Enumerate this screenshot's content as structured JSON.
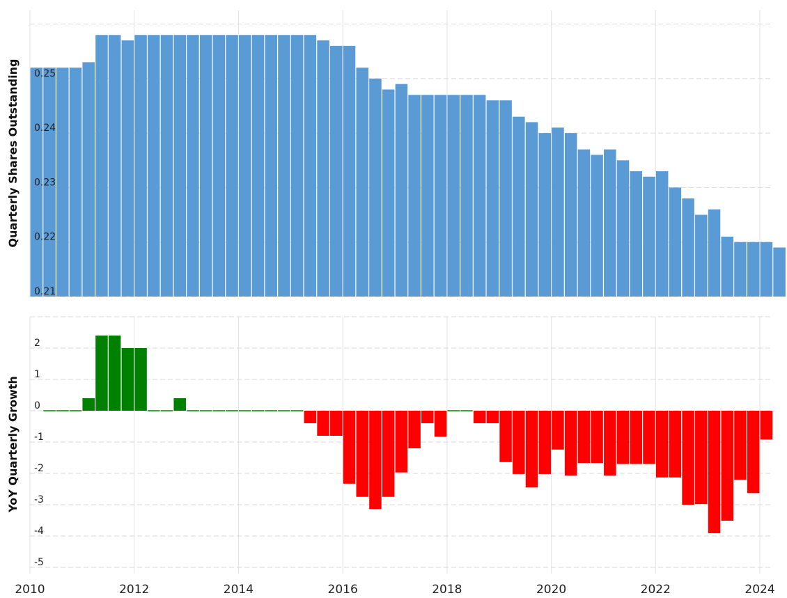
{
  "chart_data": [
    {
      "type": "bar",
      "ylabel": "Quarterly Shares Outstanding",
      "ylim": [
        0.21,
        0.2625
      ],
      "y_ticks": [
        "0.21",
        "0.22",
        "0.23",
        "0.24",
        "0.25"
      ],
      "x_ticks": [
        "2010",
        "2012",
        "2014",
        "2016",
        "2018",
        "2020",
        "2022",
        "2024"
      ],
      "grid": true,
      "color": "#5b9bd5",
      "quarters": [
        "2010-Q1",
        "2010-Q2",
        "2010-Q3",
        "2010-Q4",
        "2011-Q1",
        "2011-Q2",
        "2011-Q3",
        "2011-Q4",
        "2012-Q1",
        "2012-Q2",
        "2012-Q3",
        "2012-Q4",
        "2013-Q1",
        "2013-Q2",
        "2013-Q3",
        "2013-Q4",
        "2014-Q1",
        "2014-Q2",
        "2014-Q3",
        "2014-Q4",
        "2015-Q1",
        "2015-Q2",
        "2015-Q3",
        "2015-Q4",
        "2016-Q1",
        "2016-Q2",
        "2016-Q3",
        "2016-Q4",
        "2017-Q1",
        "2017-Q2",
        "2017-Q3",
        "2017-Q4",
        "2018-Q1",
        "2018-Q2",
        "2018-Q3",
        "2018-Q4",
        "2019-Q1",
        "2019-Q2",
        "2019-Q3",
        "2019-Q4",
        "2020-Q1",
        "2020-Q2",
        "2020-Q3",
        "2020-Q4",
        "2021-Q1",
        "2021-Q2",
        "2021-Q3",
        "2021-Q4",
        "2022-Q1",
        "2022-Q2",
        "2022-Q3",
        "2022-Q4",
        "2023-Q1",
        "2023-Q2",
        "2023-Q3",
        "2023-Q4",
        "2024-Q1",
        "2024-Q2"
      ],
      "values": [
        0.252,
        0.252,
        0.252,
        0.252,
        0.253,
        0.258,
        0.258,
        0.257,
        0.258,
        0.258,
        0.258,
        0.258,
        0.258,
        0.258,
        0.258,
        0.258,
        0.258,
        0.258,
        0.258,
        0.258,
        0.258,
        0.258,
        0.257,
        0.256,
        0.256,
        0.252,
        0.25,
        0.248,
        0.249,
        0.247,
        0.247,
        0.247,
        0.247,
        0.247,
        0.247,
        0.246,
        0.246,
        0.243,
        0.242,
        0.24,
        0.241,
        0.24,
        0.237,
        0.236,
        0.237,
        0.235,
        0.233,
        0.232,
        0.233,
        0.23,
        0.228,
        0.225,
        0.226,
        0.221,
        0.22,
        0.22,
        0.22,
        0.219
      ]
    },
    {
      "type": "bar",
      "ylabel": "YoY Quarterly Growth",
      "ylim": [
        -5.2,
        3
      ],
      "y_ticks": [
        "2",
        "1",
        "0",
        "-1",
        "-2",
        "-3",
        "-4",
        "-5"
      ],
      "x_ticks": [
        "2010",
        "2012",
        "2014",
        "2016",
        "2018",
        "2020",
        "2022",
        "2024"
      ],
      "grid": true,
      "positive_color": "#008000",
      "negative_color": "#ff0000",
      "quarters": [
        "2010-Q2",
        "2010-Q3",
        "2010-Q4",
        "2011-Q1",
        "2011-Q2",
        "2011-Q3",
        "2011-Q4",
        "2012-Q1",
        "2012-Q2",
        "2012-Q3",
        "2012-Q4",
        "2013-Q1",
        "2013-Q2",
        "2013-Q3",
        "2013-Q4",
        "2014-Q1",
        "2014-Q2",
        "2014-Q3",
        "2014-Q4",
        "2015-Q1",
        "2015-Q2",
        "2015-Q3",
        "2015-Q4",
        "2016-Q1",
        "2016-Q2",
        "2016-Q3",
        "2016-Q4",
        "2017-Q1",
        "2017-Q2",
        "2017-Q3",
        "2017-Q4",
        "2018-Q1",
        "2018-Q2",
        "2018-Q3",
        "2018-Q4",
        "2019-Q1",
        "2019-Q2",
        "2019-Q3",
        "2019-Q4",
        "2020-Q1",
        "2020-Q2",
        "2020-Q3",
        "2020-Q4",
        "2021-Q1",
        "2021-Q2",
        "2021-Q3",
        "2021-Q4",
        "2022-Q1",
        "2022-Q2",
        "2022-Q3",
        "2022-Q4",
        "2023-Q1",
        "2023-Q2",
        "2023-Q3",
        "2023-Q4",
        "2024-Q1"
      ],
      "values": [
        0,
        0,
        0,
        0.4,
        2.4,
        2.4,
        2,
        2,
        0,
        0,
        0.4,
        0,
        0,
        0,
        0,
        0,
        0,
        0,
        0,
        0,
        -0.4,
        -0.8,
        -0.8,
        -2.33,
        -2.75,
        -3.14,
        -2.75,
        -1.97,
        -1.2,
        -0.4,
        -0.83,
        0,
        0,
        -0.4,
        -0.4,
        -1.64,
        -2.02,
        -2.45,
        -2.02,
        -1.24,
        -2.07,
        -1.67,
        -1.67,
        -2.07,
        -1.7,
        -1.7,
        -1.7,
        -2.13,
        -2.13,
        -3.0,
        -2.98,
        -3.91,
        -3.51,
        -2.2,
        -2.63,
        -0.92
      ]
    }
  ]
}
